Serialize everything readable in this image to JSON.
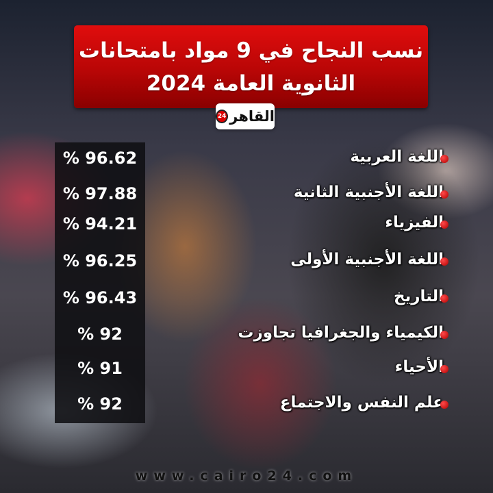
{
  "title": {
    "line1": "نسب النجاح في 9 مواد بامتحانات",
    "line2": "الثانوية العامة 2024"
  },
  "logo": {
    "text": "القاهر",
    "badge": "24"
  },
  "colors": {
    "accent": "#d40909",
    "panel": "#0f0f12",
    "text": "#ffffff"
  },
  "rows": [
    {
      "subject": "اللغة العربية",
      "value": "96.62 %"
    },
    {
      "subject": "اللغة الأجنبية الثانية",
      "value": "97.88 %"
    },
    {
      "subject": "الفيزياء",
      "value": "94.21 %"
    },
    {
      "subject": "اللغة الأجنبية الأولى",
      "value": "96.25 %"
    },
    {
      "subject": "التاريخ",
      "value": "96.43 %"
    },
    {
      "subject": "الكيمياء والجغرافيا تجاوزت",
      "value": "92 %"
    },
    {
      "subject": "الأحياء",
      "value": "91 %"
    },
    {
      "subject": "علم النفس والاجتماع",
      "value": "92 %"
    }
  ],
  "footer": {
    "website": "www.cairo24.com"
  }
}
